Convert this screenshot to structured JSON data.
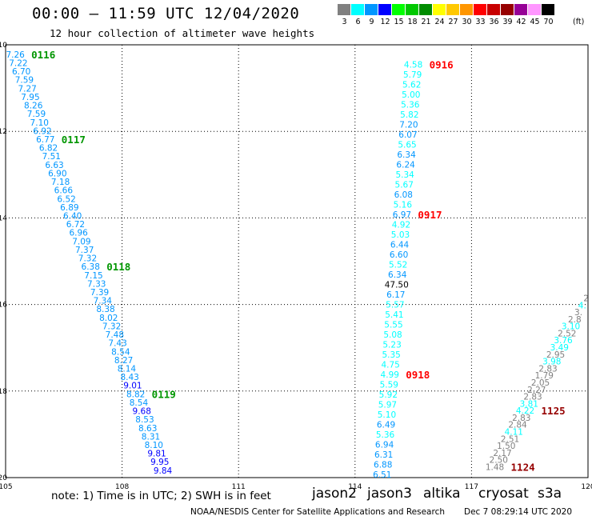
{
  "title": "00:00 – 11:59 UTC 12/04/2020",
  "subtitle": "12 hour collection of altimeter wave heights",
  "scale": {
    "unit": "(ft)",
    "bins": [
      {
        "label": "3",
        "color": "#808080"
      },
      {
        "label": "6",
        "color": "#00ffff"
      },
      {
        "label": "9",
        "color": "#0096ff"
      },
      {
        "label": "12",
        "color": "#0000ff"
      },
      {
        "label": "15",
        "color": "#00ff00"
      },
      {
        "label": "18",
        "color": "#00c800"
      },
      {
        "label": "21",
        "color": "#008c00"
      },
      {
        "label": "24",
        "color": "#ffff00"
      },
      {
        "label": "27",
        "color": "#ffc800"
      },
      {
        "label": "30",
        "color": "#ff9600"
      },
      {
        "label": "33",
        "color": "#ff0000"
      },
      {
        "label": "36",
        "color": "#c80000"
      },
      {
        "label": "39",
        "color": "#960000"
      },
      {
        "label": "42",
        "color": "#960096"
      },
      {
        "label": "45",
        "color": "#ff96ff"
      },
      {
        "label": "70",
        "color": "#000000"
      }
    ]
  },
  "axes": {
    "x_labels": [
      "105",
      "108",
      "111",
      "114",
      "117",
      "120"
    ],
    "x_values": [
      105,
      108,
      111,
      114,
      117,
      120
    ],
    "y_labels": [
      "10",
      "12",
      "14",
      "16",
      "18",
      "20"
    ],
    "y_values": [
      10,
      12,
      14,
      16,
      18,
      20
    ],
    "x_range": [
      105,
      120
    ],
    "y_range": [
      10,
      20
    ]
  },
  "tracks": [
    {
      "satellite": "jason3",
      "start": [
        105.25,
        10.22
      ],
      "end": [
        109.05,
        19.83
      ],
      "values": [
        "7.26",
        "7.22",
        "6.70",
        "7.59",
        "7.27",
        "7.95",
        "8.26",
        "7.59",
        "7.10",
        "6.92",
        "6.77",
        "6.82",
        "7.51",
        "6.63",
        "6.90",
        "7.18",
        "6.66",
        "6.52",
        "6.89",
        "6.40",
        "6.72",
        "6.96",
        "7.09",
        "7.37",
        "7.32",
        "6.38",
        "7.15",
        "7.33",
        "7.39",
        "7.34",
        "8.38",
        "8.02",
        "7.32",
        "7.48",
        "7.43",
        "8.54",
        "8.27",
        "8.14",
        "8.43",
        "9.01",
        "8.82",
        "8.54",
        "9.68",
        "8.53",
        "8.63",
        "8.31",
        "8.10",
        "9.81",
        "9.95",
        "9.84"
      ],
      "times": [
        {
          "label": "0116",
          "at": 0
        },
        {
          "label": "0117",
          "at": 10
        },
        {
          "label": "0118",
          "at": 25
        },
        {
          "label": "0119",
          "at": 40
        }
      ]
    },
    {
      "satellite": "cryosat",
      "start": [
        115.5,
        10.45
      ],
      "end": [
        114.7,
        19.93
      ],
      "values": [
        "4.58",
        "5.79",
        "5.62",
        "5.00",
        "5.36",
        "5.82",
        "7.20",
        "6.07",
        "5.65",
        "6.34",
        "6.24",
        "5.34",
        "5.67",
        "6.08",
        "5.16",
        "6.97",
        "4.92",
        "5.03",
        "6.44",
        "6.60",
        "5.52",
        "6.34",
        "47.50",
        "6.17",
        "5.57",
        "5.41",
        "5.55",
        "5.08",
        "5.23",
        "5.35",
        "4.75",
        "4.99",
        "5.59",
        "5.92",
        "5.97",
        "5.10",
        "6.49",
        "5.36",
        "6.94",
        "6.31",
        "6.88",
        "6.51"
      ],
      "times": [
        {
          "label": "0916",
          "at": 0
        },
        {
          "label": "0917",
          "at": 15
        },
        {
          "label": "0918",
          "at": 31
        }
      ]
    },
    {
      "satellite": "s3a",
      "start": [
        119.95,
        15.85
      ],
      "end": [
        117.6,
        19.75
      ],
      "values": [
        "2",
        "4.",
        "3.",
        "2.8",
        "3.10",
        "2.52",
        "3.76",
        "3.49",
        "2.95",
        "3.98",
        "2.83",
        "1.79",
        "2.05",
        "2.27",
        "2.83",
        "3.81",
        "4.22",
        "2.83",
        "2.84",
        "4.11",
        "2.51",
        "1.50",
        "2.17",
        "2.50",
        "1.48"
      ],
      "times": [
        {
          "label": "1125",
          "at": 16
        },
        {
          "label": "1124",
          "at": 24
        }
      ]
    }
  ],
  "legend": {
    "note": "note:  1) Time is in UTC;  2) SWH is in feet",
    "satellites": [
      {
        "name": "jason2",
        "color": "#0000ff"
      },
      {
        "name": "jason3",
        "color": "#009600"
      },
      {
        "name": "altika",
        "color": "#ff9600"
      },
      {
        "name": "cryosat",
        "color": "#ff0000"
      },
      {
        "name": "s3a",
        "color": "#960000"
      }
    ]
  },
  "footer": {
    "credit": "NOAA/NESDIS Center for Satellite Applications and Research",
    "timestamp": "Dec  7 08:29:14 UTC 2020"
  }
}
